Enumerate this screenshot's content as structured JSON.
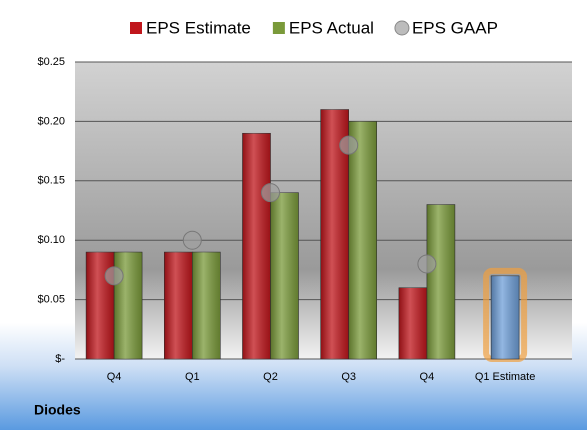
{
  "chart_data": {
    "type": "bar",
    "categories": [
      "Q4",
      "Q1",
      "Q2",
      "Q3",
      "Q4",
      "Q1 Estimate"
    ],
    "series": [
      {
        "name": "EPS Estimate",
        "color": "#c0161c",
        "values": [
          0.09,
          0.09,
          0.19,
          0.21,
          0.06,
          0.07
        ],
        "highlight": {
          "index": 5,
          "color": "#6f9fd8",
          "glow": "#f0a040"
        }
      },
      {
        "name": "EPS Actual",
        "color": "#7a9a3a",
        "values": [
          0.09,
          0.09,
          0.14,
          0.2,
          0.13,
          null
        ]
      },
      {
        "name": "EPS GAAP",
        "color": "#a0a0a0",
        "type": "scatter",
        "values": [
          0.07,
          0.1,
          0.14,
          0.18,
          0.08,
          null
        ]
      }
    ],
    "ylim": [
      0,
      0.25
    ],
    "yticks": [
      {
        "value": 0,
        "label": "$-"
      },
      {
        "value": 0.05,
        "label": "$0.05"
      },
      {
        "value": 0.1,
        "label": "$0.10"
      },
      {
        "value": 0.15,
        "label": "$0.15"
      },
      {
        "value": 0.2,
        "label": "$0.20"
      },
      {
        "value": 0.25,
        "label": "$0.25"
      }
    ],
    "grid": true,
    "footer": "Diodes"
  }
}
